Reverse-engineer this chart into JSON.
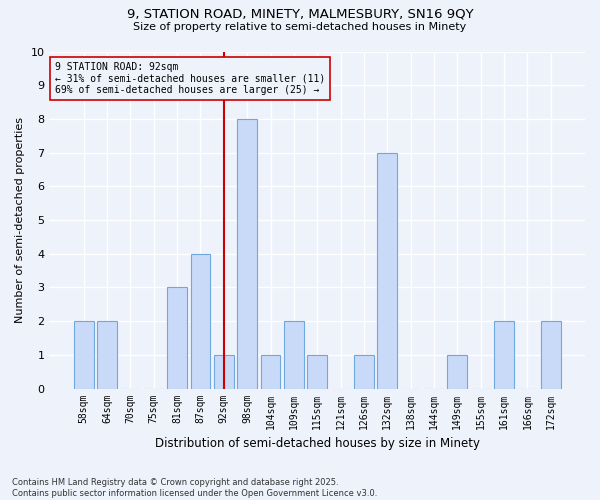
{
  "title_line1": "9, STATION ROAD, MINETY, MALMESBURY, SN16 9QY",
  "title_line2": "Size of property relative to semi-detached houses in Minety",
  "xlabel": "Distribution of semi-detached houses by size in Minety",
  "ylabel": "Number of semi-detached properties",
  "categories": [
    "58sqm",
    "64sqm",
    "70sqm",
    "75sqm",
    "81sqm",
    "87sqm",
    "92sqm",
    "98sqm",
    "104sqm",
    "109sqm",
    "115sqm",
    "121sqm",
    "126sqm",
    "132sqm",
    "138sqm",
    "144sqm",
    "149sqm",
    "155sqm",
    "161sqm",
    "166sqm",
    "172sqm"
  ],
  "values": [
    2,
    2,
    0,
    0,
    3,
    4,
    1,
    8,
    1,
    2,
    1,
    0,
    1,
    7,
    0,
    0,
    1,
    0,
    2,
    0,
    2
  ],
  "bar_color": "#c9daf8",
  "bar_edge_color": "#6fa8dc",
  "subject_bar_index": 6,
  "subject_line_color": "#cc0000",
  "annotation_line1": "9 STATION ROAD: 92sqm",
  "annotation_line2": "← 31% of semi-detached houses are smaller (11)",
  "annotation_line3": "69% of semi-detached houses are larger (25) →",
  "annotation_box_color": "#cc0000",
  "ylim": [
    0,
    10
  ],
  "yticks": [
    0,
    1,
    2,
    3,
    4,
    5,
    6,
    7,
    8,
    9,
    10
  ],
  "background_color": "#eef2fb",
  "grid_color": "#ffffff",
  "footer_line1": "Contains HM Land Registry data © Crown copyright and database right 2025.",
  "footer_line2": "Contains public sector information licensed under the Open Government Licence v3.0."
}
